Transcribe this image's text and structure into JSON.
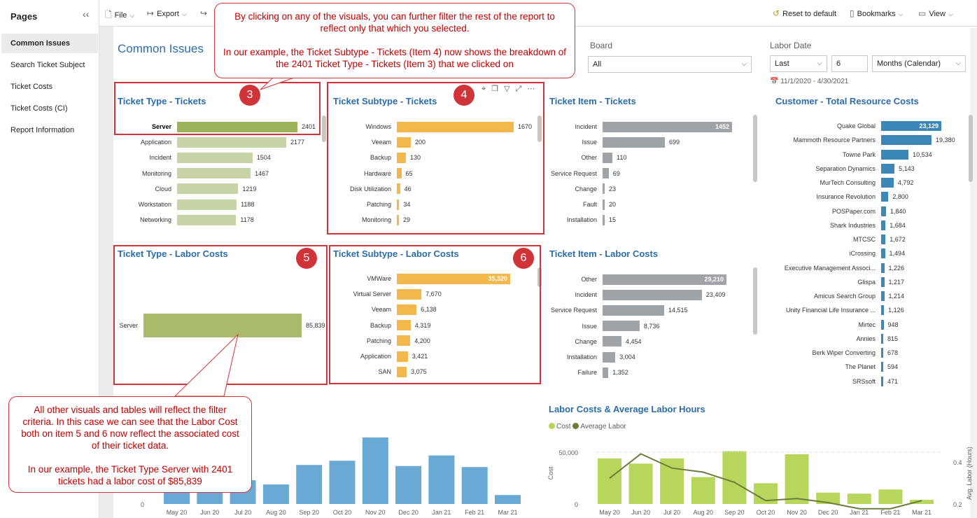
{
  "pages": {
    "title": "Pages",
    "items": [
      {
        "label": "Common Issues",
        "active": true
      },
      {
        "label": "Search Ticket Subject",
        "active": false
      },
      {
        "label": "Ticket Costs",
        "active": false
      },
      {
        "label": "Ticket Costs (CI)",
        "active": false
      },
      {
        "label": "Report Information",
        "active": false
      }
    ]
  },
  "toolbar": {
    "file": "File",
    "export": "Export",
    "reset": "Reset to default",
    "bookmarks": "Bookmarks",
    "view": "View"
  },
  "report": {
    "title": "Common Issues",
    "board_label": "Board",
    "board_value": "All",
    "labor_date_label": "Labor Date",
    "labor_date_mode": "Last",
    "labor_date_count": "6",
    "labor_date_unit": "Months (Calendar)",
    "labor_date_range": "11/1/2020 - 4/30/2021"
  },
  "visuals": {
    "ticket_type_tickets": {
      "title": "Ticket Type - Tickets",
      "color": "#c9d4a6",
      "highlight": "#9db35a",
      "rows": [
        {
          "label": "Server",
          "value": 2401,
          "text": "2401",
          "selected": true
        },
        {
          "label": "Application",
          "value": 2177,
          "text": "2177"
        },
        {
          "label": "Incident",
          "value": 1504,
          "text": "1504"
        },
        {
          "label": "Monitoring",
          "value": 1467,
          "text": "1467"
        },
        {
          "label": "Cloud",
          "value": 1219,
          "text": "1219"
        },
        {
          "label": "Workstation",
          "value": 1188,
          "text": "1188"
        },
        {
          "label": "Networking",
          "value": 1178,
          "text": "1178"
        }
      ]
    },
    "ticket_subtype_tickets": {
      "title": "Ticket Subtype - Tickets",
      "color": "#f2b84b",
      "rows": [
        {
          "label": "Windows",
          "value": 1670,
          "text": "1670"
        },
        {
          "label": "Veeam",
          "value": 200,
          "text": "200"
        },
        {
          "label": "Backup",
          "value": 130,
          "text": "130"
        },
        {
          "label": "Hardware",
          "value": 65,
          "text": "65"
        },
        {
          "label": "Disk Utilization",
          "value": 46,
          "text": "46"
        },
        {
          "label": "Patching",
          "value": 34,
          "text": "34"
        },
        {
          "label": "Monitoring",
          "value": 29,
          "text": "29"
        }
      ]
    },
    "ticket_item_tickets": {
      "title": "Ticket Item - Tickets",
      "color": "#a0a4a8",
      "rows": [
        {
          "label": "Incident",
          "value": 1452,
          "text": "1452"
        },
        {
          "label": "Issue",
          "value": 699,
          "text": "699"
        },
        {
          "label": "Other",
          "value": 110,
          "text": "110"
        },
        {
          "label": "Service Request",
          "value": 69,
          "text": "69"
        },
        {
          "label": "Change",
          "value": 23,
          "text": "23"
        },
        {
          "label": "Fault",
          "value": 20,
          "text": "20"
        },
        {
          "label": "Installation",
          "value": 15,
          "text": "15"
        }
      ]
    },
    "ticket_type_labor": {
      "title": "Ticket Type - Labor Costs",
      "color": "#a9bb6a",
      "rows": [
        {
          "label": "Server",
          "value": 85839,
          "text": "85,839"
        }
      ]
    },
    "ticket_subtype_labor": {
      "title": "Ticket Subtype - Labor Costs",
      "color": "#f2b84b",
      "rows": [
        {
          "label": "VMWare",
          "value": 35320,
          "text": "35,320"
        },
        {
          "label": "Virtual Server",
          "value": 7670,
          "text": "7,670"
        },
        {
          "label": "Veeam",
          "value": 6138,
          "text": "6,138"
        },
        {
          "label": "Backup",
          "value": 4319,
          "text": "4,319"
        },
        {
          "label": "Patching",
          "value": 4200,
          "text": "4,200"
        },
        {
          "label": "Application",
          "value": 3421,
          "text": "3,421"
        },
        {
          "label": "SAN",
          "value": 3075,
          "text": "3,075"
        }
      ]
    },
    "ticket_item_labor": {
      "title": "Ticket Item - Labor Costs",
      "color": "#a0a4a8",
      "rows": [
        {
          "label": "Other",
          "value": 29210,
          "text": "29,210"
        },
        {
          "label": "Incident",
          "value": 23409,
          "text": "23,409"
        },
        {
          "label": "Service Request",
          "value": 14515,
          "text": "14,515"
        },
        {
          "label": "Issue",
          "value": 8736,
          "text": "8,736"
        },
        {
          "label": "Change",
          "value": 4454,
          "text": "4,454"
        },
        {
          "label": "Installation",
          "value": 3004,
          "text": "3,004"
        },
        {
          "label": "Failure",
          "value": 1352,
          "text": "1,352"
        }
      ]
    },
    "customer_costs": {
      "title": "Customer - Total Resource Costs",
      "color": "#3a87b8",
      "rows": [
        {
          "label": "Quake Global",
          "value": 23129,
          "text": "23,129"
        },
        {
          "label": "Mammoth Resource Partners",
          "value": 19380,
          "text": "19,380"
        },
        {
          "label": "Towne Park",
          "value": 10534,
          "text": "10,534"
        },
        {
          "label": "Separation Dynamics",
          "value": 5143,
          "text": "5,143"
        },
        {
          "label": "MurTech Consulting",
          "value": 4792,
          "text": "4,792"
        },
        {
          "label": "Insurance Revolution",
          "value": 2800,
          "text": "2,800"
        },
        {
          "label": "POSPaper.com",
          "value": 1840,
          "text": "1,840"
        },
        {
          "label": "Shark Industries",
          "value": 1684,
          "text": "1,684"
        },
        {
          "label": "MTCSC",
          "value": 1672,
          "text": "1,672"
        },
        {
          "label": "iCrossing",
          "value": 1494,
          "text": "1,494"
        },
        {
          "label": "Executive Management Associ...",
          "value": 1226,
          "text": "1,226"
        },
        {
          "label": "Glispa",
          "value": 1217,
          "text": "1,217"
        },
        {
          "label": "Amicus Search Group",
          "value": 1214,
          "text": "1,214"
        },
        {
          "label": "Unity Financial Life Insurance ...",
          "value": 1126,
          "text": "1,126"
        },
        {
          "label": "Mirtec",
          "value": 948,
          "text": "948"
        },
        {
          "label": "Annies",
          "value": 815,
          "text": "815"
        },
        {
          "label": "Berk Wiper Converting",
          "value": 678,
          "text": "678"
        },
        {
          "label": "The Planet",
          "value": 594,
          "text": "594"
        },
        {
          "label": "SRSsoft",
          "value": 471,
          "text": "471"
        }
      ]
    }
  },
  "chart_data": [
    {
      "type": "bar",
      "categories": [
        "May 20",
        "Jun 20",
        "Jul 20",
        "Aug 20",
        "Sep 20",
        "Oct 20",
        "Nov 20",
        "Dec 20",
        "Jan 21",
        "Feb 21",
        "Mar 21"
      ],
      "values": [
        30,
        22,
        45,
        37,
        74,
        82,
        126,
        72,
        92,
        70,
        17
      ],
      "color": "#6aa9d4",
      "y_axis_label": "0"
    },
    {
      "type": "bar",
      "title": "Labor Costs & Average Labor Hours",
      "categories": [
        "May 20",
        "Jun 20",
        "Jul 20",
        "Aug 20",
        "Sep 20",
        "Oct 20",
        "Nov 20",
        "Dec 20",
        "Jan 21",
        "Feb 21",
        "Mar 21"
      ],
      "series": [
        {
          "name": "Cost",
          "type": "bar",
          "color": "#b8d65c",
          "values": [
            44000,
            39000,
            44000,
            26000,
            51000,
            20000,
            48000,
            11000,
            10000,
            14000,
            4000
          ]
        },
        {
          "name": "Average Labor",
          "type": "line",
          "color": "#6b7d3a",
          "values": [
            0.32,
            0.44,
            0.37,
            0.35,
            0.3,
            0.21,
            0.22,
            0.2,
            0.17,
            0.17,
            0.21
          ]
        }
      ],
      "ylabel": "Cost",
      "y2label": "Avg. Labor (Hours)",
      "ylim": [
        0,
        55000
      ],
      "y2lim": [
        0.16,
        0.46
      ],
      "y_ticks": [
        "50,000",
        "0"
      ],
      "y2_ticks": [
        "0.4",
        "0.2"
      ]
    }
  ],
  "callouts": {
    "top": "By clicking on any of the visuals, you can further filter the rest of the report to reflect only that which you selected.\n\nIn our example, the Ticket Subtype - Tickets (Item 4) now shows the breakdown of the 2401 Ticket Type - Tickets (Item 3) that we clicked on",
    "bottom": "All other visuals and tables will reflect the filter criteria.  In this case we can see that the Labor Cost both on item 5 and 6 now reflect the associated cost of their ticket data.\n\nIn our example, the Ticket Type Server with 2401 tickets had a labor cost of $85,839"
  },
  "badges": [
    "3",
    "4",
    "5",
    "6"
  ]
}
